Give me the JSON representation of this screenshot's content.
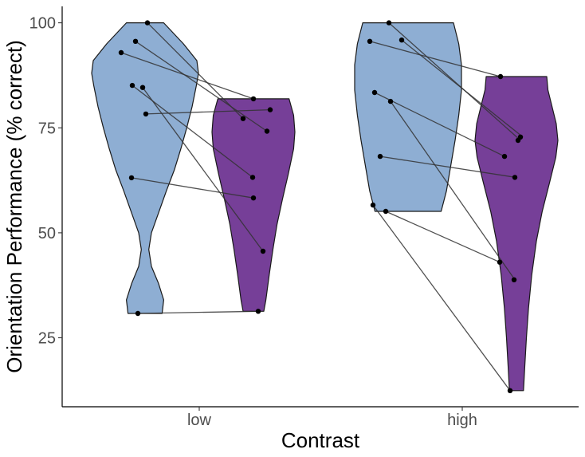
{
  "chart_data": {
    "type": "violin",
    "title": "",
    "xlabel": "Contrast",
    "ylabel": "Orientation Performance (% correct)",
    "categories": [
      "low",
      "high"
    ],
    "yticks": [
      25,
      50,
      75,
      100
    ],
    "ylim": [
      8.5,
      104
    ],
    "grid": false,
    "legend": "none",
    "series": [
      {
        "color": "#8eaed3"
      },
      {
        "color": "#763f98"
      }
    ],
    "violins": [
      {
        "category": "low",
        "series_index": 0,
        "range": [
          30.8,
          100
        ],
        "shape": [
          [
            30.8,
            0.32
          ],
          [
            34,
            0.35
          ],
          [
            38,
            0.25
          ],
          [
            42,
            0.12
          ],
          [
            46,
            0.07
          ],
          [
            50,
            0.12
          ],
          [
            55,
            0.26
          ],
          [
            60,
            0.4
          ],
          [
            65,
            0.55
          ],
          [
            70,
            0.67
          ],
          [
            75,
            0.78
          ],
          [
            80,
            0.88
          ],
          [
            85,
            0.96
          ],
          [
            88,
            1.0
          ],
          [
            91,
            0.97
          ],
          [
            95,
            0.72
          ],
          [
            100,
            0.35
          ]
        ],
        "points": [
          100,
          95.6,
          92.9,
          85.1,
          84.6,
          78.3,
          63.1,
          30.8
        ]
      },
      {
        "category": "low",
        "series_index": 1,
        "range": [
          31.3,
          81.9
        ],
        "shape": [
          [
            31.3,
            0.25
          ],
          [
            34,
            0.3
          ],
          [
            40,
            0.38
          ],
          [
            46,
            0.47
          ],
          [
            52,
            0.57
          ],
          [
            58,
            0.7
          ],
          [
            64,
            0.84
          ],
          [
            70,
            0.97
          ],
          [
            74,
            1.0
          ],
          [
            78,
            0.97
          ],
          [
            81.9,
            0.86
          ]
        ],
        "points": [
          81.9,
          79.3,
          77.2,
          74.2,
          63.2,
          58.3,
          45.6,
          31.3
        ]
      },
      {
        "category": "high",
        "series_index": 0,
        "range": [
          55.1,
          100
        ],
        "shape": [
          [
            55.1,
            0.62
          ],
          [
            60,
            0.72
          ],
          [
            66,
            0.8
          ],
          [
            72,
            0.88
          ],
          [
            78,
            0.95
          ],
          [
            84,
            1.0
          ],
          [
            90,
            1.0
          ],
          [
            95,
            0.95
          ],
          [
            100,
            0.85
          ]
        ],
        "points": [
          100,
          95.9,
          95.6,
          83.4,
          81.3,
          68.2,
          56.6,
          55.1
        ]
      },
      {
        "category": "high",
        "series_index": 1,
        "range": [
          12.4,
          87.2
        ],
        "shape": [
          [
            12.4,
            0.17
          ],
          [
            18,
            0.2
          ],
          [
            25,
            0.24
          ],
          [
            32,
            0.29
          ],
          [
            40,
            0.37
          ],
          [
            48,
            0.48
          ],
          [
            55,
            0.62
          ],
          [
            62,
            0.8
          ],
          [
            68,
            0.95
          ],
          [
            72,
            1.0
          ],
          [
            76,
            0.96
          ],
          [
            80,
            0.86
          ],
          [
            84,
            0.76
          ],
          [
            87.2,
            0.73
          ]
        ],
        "points": [
          87.2,
          72.8,
          72.0,
          68.2,
          63.2,
          43.0,
          38.8,
          12.4
        ]
      }
    ],
    "pairs": [
      {
        "category": "low",
        "values": [
          [
            100,
            77.2
          ],
          [
            95.6,
            74.2
          ],
          [
            92.9,
            81.9
          ],
          [
            85.1,
            63.2
          ],
          [
            84.6,
            45.6
          ],
          [
            78.3,
            79.3
          ],
          [
            63.1,
            58.3
          ],
          [
            30.8,
            31.3
          ]
        ]
      },
      {
        "category": "high",
        "values": [
          [
            100,
            72.0
          ],
          [
            95.9,
            72.8
          ],
          [
            95.6,
            87.2
          ],
          [
            83.4,
            68.2
          ],
          [
            81.3,
            38.8
          ],
          [
            68.2,
            63.2
          ],
          [
            56.6,
            12.4
          ],
          [
            55.1,
            43.0
          ]
        ]
      }
    ]
  }
}
